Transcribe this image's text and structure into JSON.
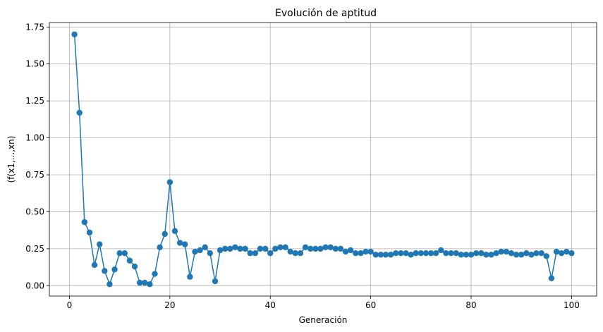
{
  "chart_data": {
    "type": "line",
    "title": "Evolución de aptitud",
    "xlabel": "Generación",
    "ylabel": "(f(x1,...,xn)",
    "xlim": [
      -4,
      105
    ],
    "ylim": [
      -0.07,
      1.78
    ],
    "xticks": [
      0,
      20,
      40,
      60,
      80,
      100
    ],
    "xtick_labels": [
      "0",
      "20",
      "40",
      "60",
      "80",
      "100"
    ],
    "yticks": [
      0.0,
      0.25,
      0.5,
      0.75,
      1.0,
      1.25,
      1.5,
      1.75
    ],
    "ytick_labels": [
      "0.00",
      "0.25",
      "0.50",
      "0.75",
      "1.00",
      "1.25",
      "1.50",
      "1.75"
    ],
    "grid": true,
    "marker": "circle",
    "line_color": "#1f77b4",
    "series": [
      {
        "x": [
          1,
          2,
          3,
          4,
          5,
          6,
          7,
          8,
          9,
          10,
          11,
          12,
          13,
          14,
          15,
          16,
          17,
          18,
          19,
          20,
          21,
          22,
          23,
          24,
          25,
          26,
          27,
          28,
          29,
          30,
          31,
          32,
          33,
          34,
          35,
          36,
          37,
          38,
          39,
          40,
          41,
          42,
          43,
          44,
          45,
          46,
          47,
          48,
          49,
          50,
          51,
          52,
          53,
          54,
          55,
          56,
          57,
          58,
          59,
          60,
          61,
          62,
          63,
          64,
          65,
          66,
          67,
          68,
          69,
          70,
          71,
          72,
          73,
          74,
          75,
          76,
          77,
          78,
          79,
          80,
          81,
          82,
          83,
          84,
          85,
          86,
          87,
          88,
          89,
          90,
          91,
          92,
          93,
          94,
          95,
          96,
          97,
          98,
          99,
          100
        ],
        "values": [
          1.7,
          1.17,
          0.43,
          0.36,
          0.14,
          0.28,
          0.1,
          0.01,
          0.11,
          0.22,
          0.22,
          0.17,
          0.13,
          0.02,
          0.02,
          0.01,
          0.08,
          0.26,
          0.35,
          0.7,
          0.37,
          0.29,
          0.28,
          0.06,
          0.23,
          0.24,
          0.26,
          0.22,
          0.03,
          0.24,
          0.25,
          0.25,
          0.26,
          0.25,
          0.25,
          0.22,
          0.22,
          0.25,
          0.25,
          0.22,
          0.25,
          0.26,
          0.26,
          0.23,
          0.22,
          0.22,
          0.26,
          0.25,
          0.25,
          0.25,
          0.26,
          0.26,
          0.25,
          0.25,
          0.23,
          0.24,
          0.22,
          0.22,
          0.23,
          0.23,
          0.21,
          0.21,
          0.21,
          0.21,
          0.22,
          0.22,
          0.22,
          0.21,
          0.22,
          0.22,
          0.22,
          0.22,
          0.22,
          0.24,
          0.22,
          0.22,
          0.22,
          0.21,
          0.21,
          0.21,
          0.22,
          0.22,
          0.21,
          0.21,
          0.22,
          0.23,
          0.23,
          0.22,
          0.21,
          0.21,
          0.22,
          0.21,
          0.22,
          0.22,
          0.2,
          0.05,
          0.23,
          0.22,
          0.23,
          0.22
        ]
      }
    ]
  }
}
